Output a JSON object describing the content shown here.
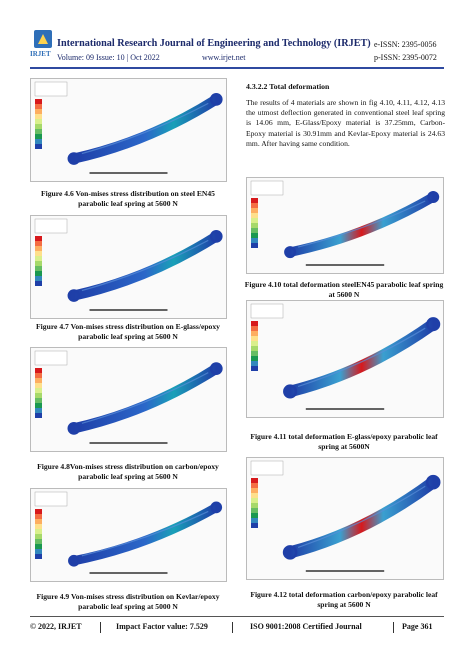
{
  "header": {
    "logo": "IRJET",
    "title": "International Research Journal of Engineering and Technology (IRJET)",
    "eissn": "e-ISSN: 2395-0056",
    "volume": "Volume: 09 Issue: 10 | Oct 2022",
    "website": "www.irjet.net",
    "pissn": "p-ISSN: 2395-0072"
  },
  "left_figures": [
    "Figure 4.6 Von-mises stress distribution on steel EN45 parabolic leaf spring at 5600 N",
    "Figure 4.7 Von-mises stress distribution on E-glass/epoxy parabolic leaf spring at 5600 N",
    "Figure 4.8Von-mises stress distribution on carbon/epoxy parabolic leaf spring at 5600 N",
    "Figure 4.9 Von-mises stress distribution on Kevlar/epoxy parabolic leaf spring at 5000 N"
  ],
  "section": {
    "heading": "4.3.2.2 Total deformation",
    "paragraph": "The results of 4 materials are shown in fig 4.10, 4.11, 4.12, 4.13 the utmost deflection generated in conventional steel leaf spring is 14.06 mm, E-Glass/Epoxy material is 37.25mm, Carbon-Epoxy material is 30.91mm and Kevlar-Epoxy material is 24.63 mm. After having same condition."
  },
  "right_figures": [
    "Figure 4.10 total deformation steelEN45 parabolic leaf spring at 5600 N",
    "Figure 4.11 total deformation E-glass/epoxy parabolic leaf spring at 5600N",
    "Figure 4.12 total deformation carbon/epoxy parabolic leaf spring at 5600 N"
  ],
  "footer": [
    "© 2022, IRJET",
    "Impact Factor value: 7.529",
    "ISO 9001:2008 Certified Journal",
    "Page 361"
  ]
}
